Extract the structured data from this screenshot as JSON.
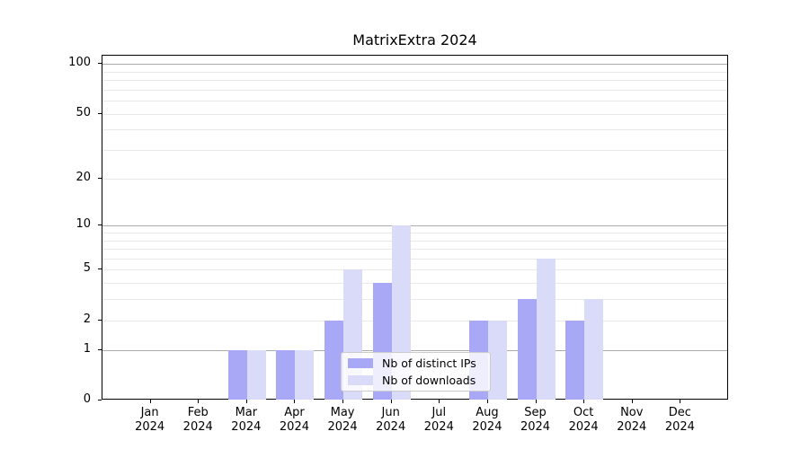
{
  "title": "MatrixExtra 2024",
  "chart_data": {
    "type": "bar",
    "title": "MatrixExtra 2024",
    "categories": [
      "Jan",
      "Feb",
      "Mar",
      "Apr",
      "May",
      "Jun",
      "Jul",
      "Aug",
      "Sep",
      "Oct",
      "Nov",
      "Dec"
    ],
    "year": "2024",
    "series": [
      {
        "name": "Nb of distinct IPs",
        "color": "#a8a8f6",
        "values": [
          0,
          0,
          1,
          1,
          2,
          4,
          0,
          2,
          3,
          2,
          0,
          0
        ]
      },
      {
        "name": "Nb of downloads",
        "color": "#dadaf9",
        "values": [
          0,
          0,
          1,
          1,
          5,
          10,
          0,
          2,
          6,
          3,
          0,
          0
        ]
      }
    ],
    "xlabel": "",
    "ylabel": "",
    "y_scale": "log10(1+y)",
    "ylim": [
      0,
      112
    ],
    "y_tick_values": [
      0,
      1,
      2,
      5,
      10,
      20,
      50,
      100
    ],
    "y_tick_labels": [
      "0",
      "1",
      "2",
      "5",
      "10",
      "20",
      "50",
      "100"
    ],
    "grid_major_values": [
      1,
      10,
      100
    ],
    "grid_minor_values": [
      2,
      3,
      4,
      5,
      6,
      7,
      8,
      9,
      20,
      30,
      40,
      50,
      60,
      70,
      80,
      90
    ],
    "legend_position": "lower-center-inside",
    "grid": "on"
  },
  "legend": {
    "items": [
      {
        "label": "Nb of distinct IPs",
        "color": "#a8a8f6"
      },
      {
        "label": "Nb of downloads",
        "color": "#dadaf9"
      }
    ]
  },
  "colors": {
    "distinct_ips_bar": "#a8a8f6",
    "downloads_bar": "#dadaf9",
    "grid_major": "#ababab",
    "grid_minor": "#e9e9e9",
    "spine": "#000000",
    "background": "#ffffff"
  }
}
